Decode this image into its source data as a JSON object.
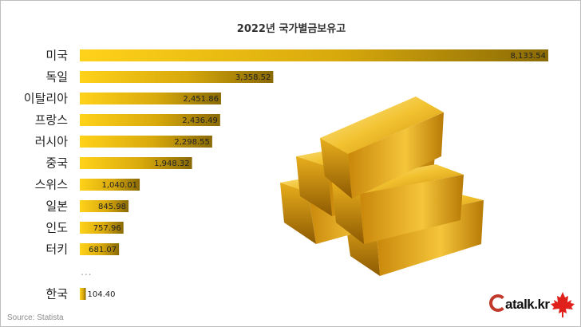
{
  "chart_data": {
    "type": "bar",
    "orientation": "horizontal",
    "title": "2022년 국가별금보유고",
    "categories": [
      "미국",
      "독일",
      "이탈리아",
      "프랑스",
      "러시아",
      "중국",
      "스위스",
      "일본",
      "인도",
      "터키",
      "한국"
    ],
    "values": [
      8133.54,
      3358.52,
      2451.86,
      2436.49,
      2298.55,
      1948.32,
      1040.01,
      845.98,
      757.96,
      681.07,
      104.4
    ],
    "value_labels": [
      "8,133.54",
      "3,358.52",
      "2,451.86",
      "2,436.49",
      "2,298.55",
      "1,948.32",
      "1,040.01",
      "845.98",
      "757.96",
      "681.07",
      "104.40"
    ],
    "xlim": [
      0,
      8133.54
    ],
    "grid": false,
    "legend": "none",
    "gap_before_last": "...",
    "colors": {
      "bar_start": "#ffd21a",
      "bar_end": "#8a6a05",
      "label_text": "#222222"
    }
  },
  "source": "Source: Statista",
  "logo": {
    "text": "atalk.kr",
    "ring_color": "#c0392b",
    "leaf_color": "#e0201b"
  }
}
